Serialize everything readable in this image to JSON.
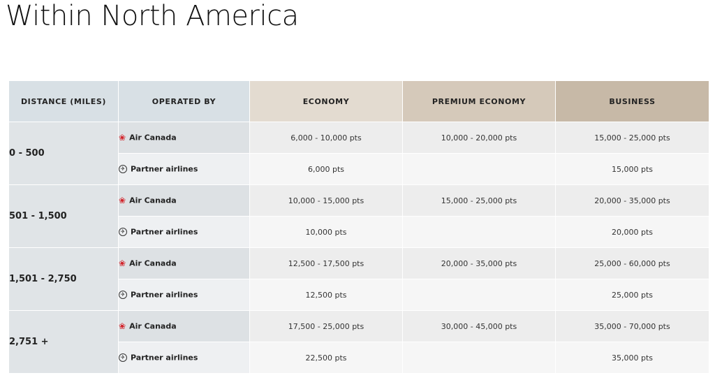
{
  "title": "Within North America",
  "table": {
    "headers": {
      "distance": "DISTANCE (MILES)",
      "operated": "OPERATED BY",
      "economy": "ECONOMY",
      "premium": "PREMIUM ECONOMY",
      "business": "BUSINESS"
    },
    "groups": [
      {
        "distance": "0 - 500",
        "rows": [
          {
            "operator": "Air Canada",
            "icon": "maple-leaf-icon",
            "economy": "6,000 - 10,000 pts",
            "premium": "10,000 - 20,000 pts",
            "business": "15,000 - 25,000 pts"
          },
          {
            "operator": "Partner airlines",
            "icon": "plane-icon",
            "economy": "6,000 pts",
            "premium": "",
            "business": "15,000 pts"
          }
        ]
      },
      {
        "distance": "501 - 1,500",
        "rows": [
          {
            "operator": "Air Canada",
            "icon": "maple-leaf-icon",
            "economy": "10,000 - 15,000 pts",
            "premium": "15,000 - 25,000 pts",
            "business": "20,000 - 35,000 pts"
          },
          {
            "operator": "Partner airlines",
            "icon": "plane-icon",
            "economy": "10,000 pts",
            "premium": "",
            "business": "20,000 pts"
          }
        ]
      },
      {
        "distance": "1,501 - 2,750",
        "rows": [
          {
            "operator": "Air Canada",
            "icon": "maple-leaf-icon",
            "economy": "12,500 - 17,500 pts",
            "premium": "20,000 - 35,000 pts",
            "business": "25,000 - 60,000 pts"
          },
          {
            "operator": "Partner airlines",
            "icon": "plane-icon",
            "economy": "12,500 pts",
            "premium": "",
            "business": "25,000 pts"
          }
        ]
      },
      {
        "distance": "2,751 +",
        "rows": [
          {
            "operator": "Air Canada",
            "icon": "maple-leaf-icon",
            "economy": "17,500 - 25,000 pts",
            "premium": "30,000 - 45,000 pts",
            "business": "35,000 - 70,000 pts"
          },
          {
            "operator": "Partner airlines",
            "icon": "plane-icon",
            "economy": "22,500 pts",
            "premium": "",
            "business": "35,000 pts"
          }
        ]
      }
    ]
  },
  "colors": {
    "air_canada_red": "#d2232a",
    "header_blue": "#d8e0e5",
    "economy": "#e3dbd0",
    "premium": "#d5c9ba",
    "business": "#c7b9a7"
  }
}
